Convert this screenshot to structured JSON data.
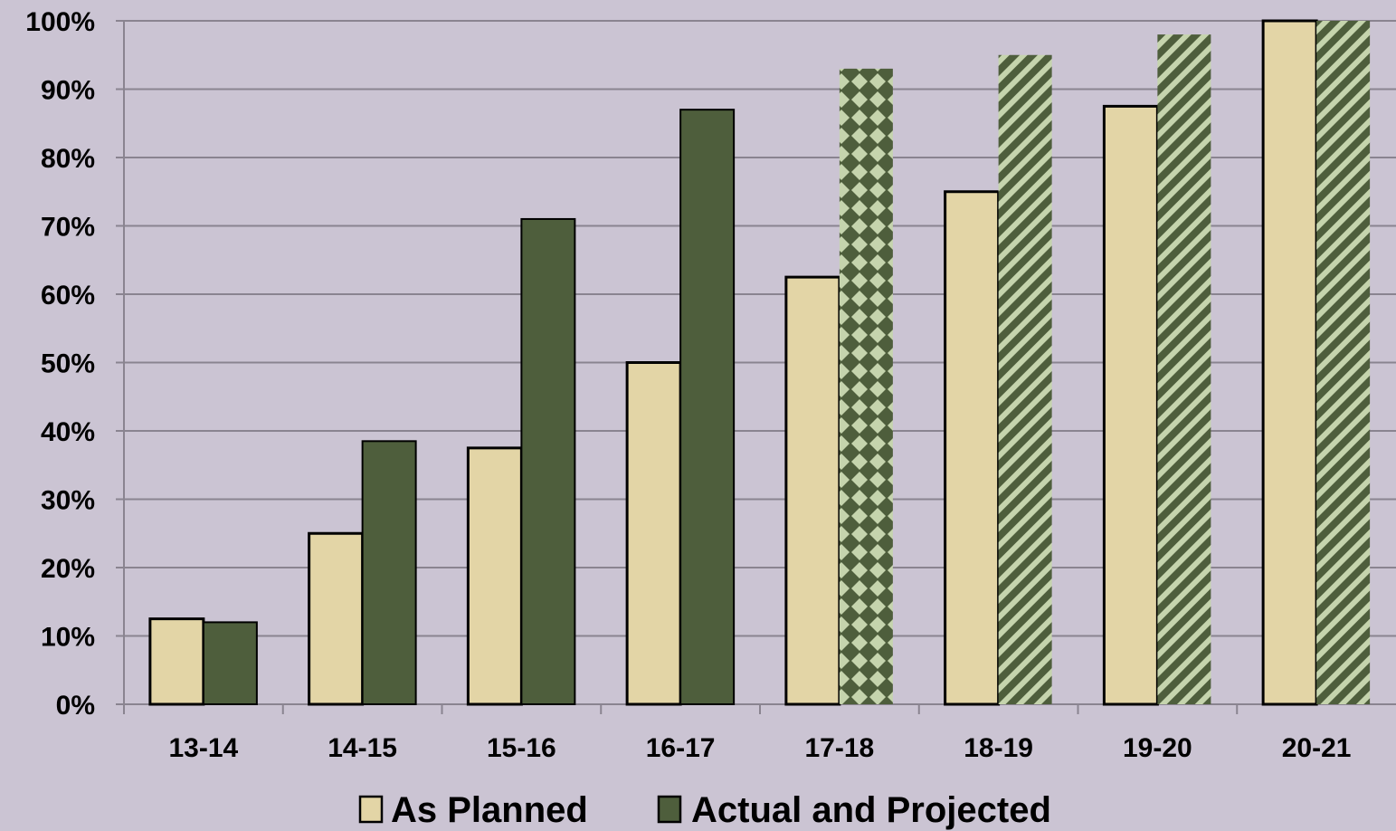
{
  "chart_data": {
    "type": "bar",
    "title": "",
    "xlabel": "",
    "ylabel": "",
    "categories": [
      "13-14",
      "14-15",
      "15-16",
      "16-17",
      "17-18",
      "18-19",
      "19-20",
      "20-21"
    ],
    "series": [
      {
        "name": "As Planned",
        "values": [
          12.5,
          25,
          37.5,
          50,
          62.5,
          75,
          87.5,
          100
        ],
        "color": "#e3d5a6"
      },
      {
        "name": "Actual and Projected",
        "values": [
          12,
          38.5,
          71,
          87,
          93,
          95,
          98,
          100
        ],
        "color": "#4e5e3c",
        "fill_styles": [
          "solid",
          "solid",
          "solid",
          "solid",
          "checker",
          "diagonal",
          "diagonal",
          "diagonal"
        ]
      }
    ],
    "ylim": [
      0,
      100
    ],
    "y_ticks": [
      "0%",
      "10%",
      "20%",
      "30%",
      "40%",
      "50%",
      "60%",
      "70%",
      "80%",
      "90%",
      "100%"
    ],
    "grid": true,
    "legend_position": "bottom",
    "colors": {
      "background": "#cbc4d3",
      "planned": "#e3d5a6",
      "actual": "#4e5e3c",
      "pattern_light": "#c5d4ad",
      "gridline": "#8a8490"
    }
  }
}
